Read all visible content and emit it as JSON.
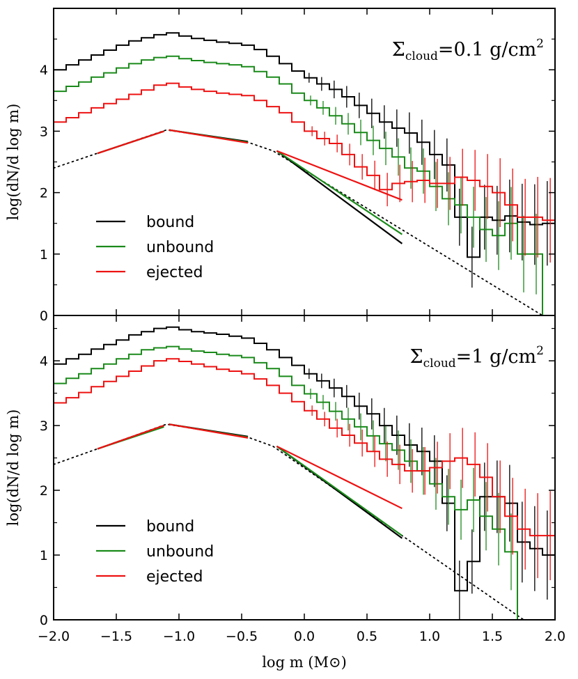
{
  "chart_data": [
    {
      "type": "line",
      "panel": "top",
      "annotation": {
        "symbol": "Σ",
        "subscript": "cloud",
        "text": "=0.1 g/cm",
        "superscript": "2"
      },
      "ylabel": "log(dN/d log m)",
      "xlabel": "",
      "xlim": [
        -2.0,
        2.0
      ],
      "ylim": [
        0,
        5.0
      ],
      "yticks": [
        "0",
        "1",
        "2",
        "3",
        "4"
      ],
      "xticks": [],
      "legend": {
        "position": "lower-left",
        "entries": [
          "bound",
          "unbound",
          "ejected"
        ]
      },
      "series": [
        {
          "name": "bound",
          "color": "#000000",
          "step_x": [
            -2.0,
            -1.9,
            -1.8,
            -1.7,
            -1.6,
            -1.5,
            -1.4,
            -1.3,
            -1.2,
            -1.1,
            -1.0,
            -0.9,
            -0.8,
            -0.7,
            -0.6,
            -0.5,
            -0.4,
            -0.3,
            -0.2,
            -0.1,
            0.0,
            0.1,
            0.2,
            0.3,
            0.4,
            0.5,
            0.6,
            0.7,
            0.8,
            0.9,
            1.0,
            1.1,
            1.2,
            1.3,
            1.4,
            1.5,
            1.6,
            1.7,
            1.8,
            1.9
          ],
          "values": [
            4.0,
            4.08,
            4.16,
            4.24,
            4.32,
            4.4,
            4.47,
            4.52,
            4.57,
            4.6,
            4.55,
            4.51,
            4.48,
            4.45,
            4.43,
            4.4,
            4.33,
            4.22,
            4.1,
            3.98,
            3.87,
            3.77,
            3.68,
            3.56,
            3.42,
            3.29,
            3.15,
            3.05,
            2.97,
            2.82,
            2.62,
            2.45,
            1.6,
            0.95,
            1.6,
            1.55,
            1.62,
            1.52,
            1.48,
            1.5
          ]
        },
        {
          "name": "unbound",
          "color": "#1a8a1a",
          "step_x": [
            -2.0,
            -1.9,
            -1.8,
            -1.7,
            -1.6,
            -1.5,
            -1.4,
            -1.3,
            -1.2,
            -1.1,
            -1.0,
            -0.9,
            -0.8,
            -0.7,
            -0.6,
            -0.5,
            -0.4,
            -0.3,
            -0.2,
            -0.1,
            0.0,
            0.1,
            0.2,
            0.3,
            0.4,
            0.5,
            0.6,
            0.7,
            0.8,
            0.9,
            1.0,
            1.1,
            1.2,
            1.3,
            1.4,
            1.5,
            1.6,
            1.7,
            1.8,
            1.9
          ],
          "values": [
            3.65,
            3.73,
            3.8,
            3.88,
            3.95,
            4.03,
            4.1,
            4.16,
            4.2,
            4.22,
            4.18,
            4.15,
            4.12,
            4.1,
            4.08,
            4.05,
            3.97,
            3.88,
            3.77,
            3.62,
            3.5,
            3.38,
            3.25,
            3.12,
            2.98,
            2.85,
            2.72,
            2.58,
            2.4,
            2.35,
            2.1,
            1.9,
            1.8,
            1.6,
            1.4,
            1.3,
            1.5,
            1.0,
            1.0,
            0.0
          ]
        },
        {
          "name": "ejected",
          "color": "#ee1111",
          "step_x": [
            -2.0,
            -1.9,
            -1.8,
            -1.7,
            -1.6,
            -1.5,
            -1.4,
            -1.3,
            -1.2,
            -1.1,
            -1.0,
            -0.9,
            -0.8,
            -0.7,
            -0.6,
            -0.5,
            -0.4,
            -0.3,
            -0.2,
            -0.1,
            0.0,
            0.1,
            0.2,
            0.3,
            0.4,
            0.5,
            0.6,
            0.7,
            0.8,
            0.9,
            1.0,
            1.1,
            1.2,
            1.3,
            1.4,
            1.5,
            1.6,
            1.7,
            1.8,
            1.9
          ],
          "values": [
            3.15,
            3.22,
            3.3,
            3.38,
            3.45,
            3.52,
            3.6,
            3.67,
            3.75,
            3.78,
            3.72,
            3.68,
            3.65,
            3.62,
            3.6,
            3.58,
            3.5,
            3.4,
            3.3,
            3.15,
            3.0,
            2.88,
            2.8,
            2.62,
            2.42,
            2.28,
            2.05,
            2.15,
            2.18,
            2.2,
            2.15,
            2.15,
            2.25,
            2.2,
            2.1,
            2.0,
            1.8,
            1.6,
            1.6,
            1.55
          ]
        }
      ],
      "reference_fits": {
        "dotted_x": [
          -2.0,
          -1.1,
          -0.45,
          -0.25,
          1.9
        ],
        "dotted_y": [
          2.4,
          3.02,
          2.82,
          2.68,
          0.0
        ],
        "fit_lines": [
          {
            "name": "bound",
            "color": "#000000",
            "segments": [
              {
                "x": [
                  -1.65,
                  -1.12
                ],
                "y": [
                  2.64,
                  3.0
                ]
              },
              {
                "x": [
                  -1.08,
                  -0.45
                ],
                "y": [
                  3.02,
                  2.83
                ]
              },
              {
                "x": [
                  -0.22,
                  0.78
                ],
                "y": [
                  2.68,
                  1.17
                ]
              }
            ]
          },
          {
            "name": "unbound",
            "color": "#1a8a1a",
            "segments": [
              {
                "x": [
                  -1.65,
                  -1.12
                ],
                "y": [
                  2.64,
                  3.0
                ]
              },
              {
                "x": [
                  -1.08,
                  -0.45
                ],
                "y": [
                  3.02,
                  2.82
                ]
              },
              {
                "x": [
                  -0.22,
                  0.78
                ],
                "y": [
                  2.68,
                  1.32
                ]
              }
            ]
          },
          {
            "name": "ejected",
            "color": "#ee1111",
            "segments": [
              {
                "x": [
                  -1.65,
                  -1.12
                ],
                "y": [
                  2.64,
                  3.0
                ]
              },
              {
                "x": [
                  -1.08,
                  -0.45
                ],
                "y": [
                  3.02,
                  2.81
                ]
              },
              {
                "x": [
                  -0.22,
                  0.78
                ],
                "y": [
                  2.68,
                  1.88
                ]
              }
            ]
          }
        ]
      }
    },
    {
      "type": "line",
      "panel": "bottom",
      "annotation": {
        "symbol": "Σ",
        "subscript": "cloud",
        "text": "=1 g/cm",
        "superscript": "2"
      },
      "ylabel": "log(dN/d log m)",
      "xlabel": "log m (M⊙)",
      "xlim": [
        -2.0,
        2.0
      ],
      "ylim": [
        0,
        4.7
      ],
      "yticks": [
        "0",
        "1",
        "2",
        "3",
        "4"
      ],
      "xticks": [
        "−2.0",
        "−1.5",
        "−1.0",
        "−0.5",
        "0.0",
        "0.5",
        "1.0",
        "1.5",
        "2.0"
      ],
      "legend": {
        "position": "lower-left",
        "entries": [
          "bound",
          "unbound",
          "ejected"
        ]
      },
      "series": [
        {
          "name": "bound",
          "color": "#000000",
          "step_x": [
            -2.0,
            -1.9,
            -1.8,
            -1.7,
            -1.6,
            -1.5,
            -1.4,
            -1.3,
            -1.2,
            -1.1,
            -1.0,
            -0.9,
            -0.8,
            -0.7,
            -0.6,
            -0.5,
            -0.4,
            -0.3,
            -0.2,
            -0.1,
            0.0,
            0.1,
            0.2,
            0.3,
            0.4,
            0.5,
            0.6,
            0.7,
            0.8,
            0.9,
            1.0,
            1.1,
            1.2,
            1.3,
            1.4,
            1.5,
            1.6,
            1.7,
            1.8,
            1.9
          ],
          "values": [
            3.95,
            4.03,
            4.1,
            4.18,
            4.25,
            4.32,
            4.4,
            4.45,
            4.5,
            4.52,
            4.48,
            4.45,
            4.43,
            4.41,
            4.38,
            4.35,
            4.27,
            4.17,
            4.05,
            3.93,
            3.8,
            3.69,
            3.58,
            3.45,
            3.3,
            3.18,
            3.0,
            2.85,
            2.7,
            2.6,
            2.45,
            1.8,
            0.45,
            0.9,
            1.9,
            1.9,
            1.8,
            1.2,
            1.1,
            1.0
          ]
        },
        {
          "name": "unbound",
          "color": "#1a8a1a",
          "step_x": [
            -2.0,
            -1.9,
            -1.8,
            -1.7,
            -1.6,
            -1.5,
            -1.4,
            -1.3,
            -1.2,
            -1.1,
            -1.0,
            -0.9,
            -0.8,
            -0.7,
            -0.6,
            -0.5,
            -0.4,
            -0.3,
            -0.2,
            -0.1,
            0.0,
            0.1,
            0.2,
            0.3,
            0.4,
            0.5,
            0.6,
            0.7,
            0.8,
            0.9,
            1.0,
            1.1,
            1.2,
            1.3,
            1.4,
            1.5,
            1.6,
            1.7,
            1.8,
            1.9
          ],
          "values": [
            3.65,
            3.73,
            3.8,
            3.88,
            3.95,
            4.03,
            4.1,
            4.17,
            4.2,
            4.22,
            4.18,
            4.15,
            4.13,
            4.1,
            4.08,
            4.05,
            3.97,
            3.88,
            3.76,
            3.62,
            3.49,
            3.36,
            3.22,
            3.1,
            2.98,
            2.84,
            2.72,
            2.62,
            2.45,
            2.3,
            2.1,
            1.9,
            1.7,
            1.85,
            1.6,
            1.4,
            1.05,
            0.0,
            0.0,
            0.0
          ]
        },
        {
          "name": "ejected",
          "color": "#ee1111",
          "step_x": [
            -2.0,
            -1.9,
            -1.8,
            -1.7,
            -1.6,
            -1.5,
            -1.4,
            -1.3,
            -1.2,
            -1.1,
            -1.0,
            -0.9,
            -0.8,
            -0.7,
            -0.6,
            -0.5,
            -0.4,
            -0.3,
            -0.2,
            -0.1,
            0.0,
            0.1,
            0.2,
            0.3,
            0.4,
            0.5,
            0.6,
            0.7,
            0.8,
            0.9,
            1.0,
            1.1,
            1.2,
            1.3,
            1.4,
            1.5,
            1.6,
            1.7,
            1.8,
            1.9
          ],
          "values": [
            3.35,
            3.43,
            3.51,
            3.6,
            3.68,
            3.76,
            3.84,
            3.92,
            4.0,
            4.03,
            3.99,
            3.95,
            3.91,
            3.87,
            3.84,
            3.8,
            3.72,
            3.62,
            3.5,
            3.37,
            3.23,
            3.1,
            2.96,
            2.85,
            2.73,
            2.6,
            2.48,
            2.4,
            2.3,
            2.3,
            2.35,
            2.45,
            2.5,
            2.4,
            2.2,
            1.9,
            1.6,
            1.4,
            1.3,
            1.3
          ]
        }
      ],
      "reference_fits": {
        "dotted_x": [
          -2.0,
          -1.1,
          -0.45,
          -0.25,
          1.75
        ],
        "dotted_y": [
          2.4,
          3.02,
          2.82,
          2.68,
          0.0
        ],
        "fit_lines": [
          {
            "name": "bound",
            "color": "#000000",
            "segments": [
              {
                "x": [
                  -1.65,
                  -1.12
                ],
                "y": [
                  2.64,
                  3.0
                ]
              },
              {
                "x": [
                  -1.08,
                  -0.45
                ],
                "y": [
                  3.02,
                  2.83
                ]
              },
              {
                "x": [
                  -0.22,
                  0.78
                ],
                "y": [
                  2.68,
                  1.26
                ]
              }
            ]
          },
          {
            "name": "unbound",
            "color": "#1a8a1a",
            "segments": [
              {
                "x": [
                  -1.65,
                  -1.12
                ],
                "y": [
                  2.64,
                  2.98
                ]
              },
              {
                "x": [
                  -1.08,
                  -0.45
                ],
                "y": [
                  3.02,
                  2.82
                ]
              },
              {
                "x": [
                  -0.22,
                  0.78
                ],
                "y": [
                  2.68,
                  1.3
                ]
              }
            ]
          },
          {
            "name": "ejected",
            "color": "#ee1111",
            "segments": [
              {
                "x": [
                  -1.65,
                  -1.12
                ],
                "y": [
                  2.64,
                  3.0
                ]
              },
              {
                "x": [
                  -1.08,
                  -0.45
                ],
                "y": [
                  3.02,
                  2.81
                ]
              },
              {
                "x": [
                  -0.22,
                  0.78
                ],
                "y": [
                  2.68,
                  1.72
                ]
              }
            ]
          }
        ]
      }
    }
  ]
}
